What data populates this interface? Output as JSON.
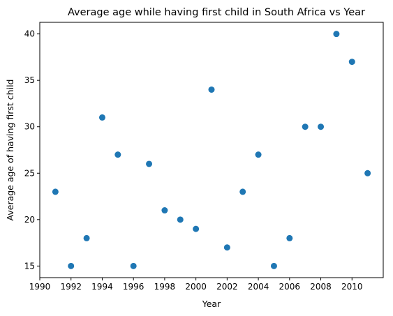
{
  "chart_data": {
    "type": "scatter",
    "title": "Average age while having first child in South Africa vs Year",
    "xlabel": "Year",
    "ylabel": "Average age of having first child",
    "xlim": [
      1990,
      2012
    ],
    "ylim": [
      13.75,
      41.25
    ],
    "x_ticks": [
      1990,
      1992,
      1994,
      1996,
      1998,
      2000,
      2002,
      2004,
      2006,
      2008,
      2010
    ],
    "y_ticks": [
      15,
      20,
      25,
      30,
      35,
      40
    ],
    "grid": false,
    "marker_color": "#1f77b4",
    "points": [
      {
        "x": 1991,
        "y": 23
      },
      {
        "x": 1992,
        "y": 15
      },
      {
        "x": 1993,
        "y": 18
      },
      {
        "x": 1994,
        "y": 31
      },
      {
        "x": 1995,
        "y": 27
      },
      {
        "x": 1996,
        "y": 15
      },
      {
        "x": 1997,
        "y": 26
      },
      {
        "x": 1998,
        "y": 21
      },
      {
        "x": 1999,
        "y": 20
      },
      {
        "x": 2000,
        "y": 19
      },
      {
        "x": 2001,
        "y": 34
      },
      {
        "x": 2002,
        "y": 17
      },
      {
        "x": 2003,
        "y": 23
      },
      {
        "x": 2004,
        "y": 27
      },
      {
        "x": 2005,
        "y": 15
      },
      {
        "x": 2006,
        "y": 18
      },
      {
        "x": 2007,
        "y": 30
      },
      {
        "x": 2008,
        "y": 30
      },
      {
        "x": 2009,
        "y": 40
      },
      {
        "x": 2010,
        "y": 37
      },
      {
        "x": 2011,
        "y": 25
      }
    ]
  }
}
